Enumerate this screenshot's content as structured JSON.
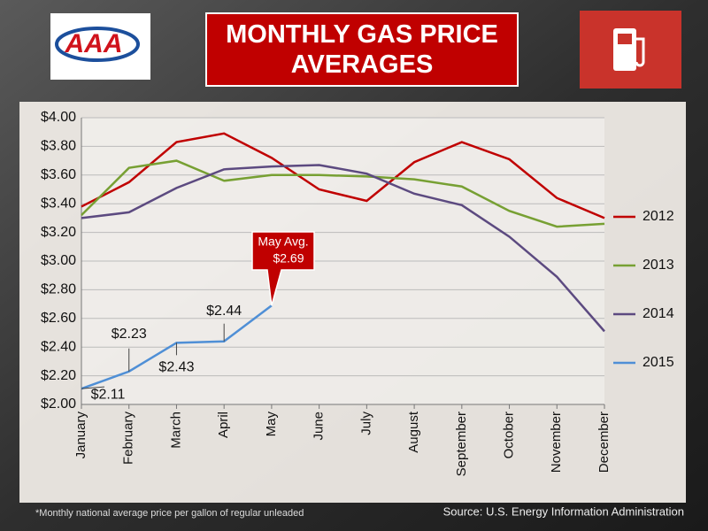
{
  "logo": "AAA",
  "chart_data": {
    "type": "line",
    "title": "MONTHLY GAS PRICE AVERAGES",
    "footnote": "*Monthly national average price per gallon of regular unleaded",
    "source": "Source: U.S. Energy Information Administration",
    "annotation": "May Avg.",
    "categories": [
      "January",
      "February",
      "March",
      "April",
      "May",
      "June",
      "July",
      "August",
      "September",
      "October",
      "November",
      "December"
    ],
    "series": [
      {
        "name": "2012",
        "color": "#c00000",
        "values": [
          3.38,
          3.55,
          3.83,
          3.89,
          3.72,
          3.5,
          3.42,
          3.69,
          3.83,
          3.71,
          3.44,
          3.3
        ]
      },
      {
        "name": "2013",
        "color": "#77a033",
        "values": [
          3.32,
          3.65,
          3.7,
          3.56,
          3.6,
          3.6,
          3.59,
          3.57,
          3.52,
          3.35,
          3.24,
          3.26
        ]
      },
      {
        "name": "2014",
        "color": "#5c4a80",
        "values": [
          3.3,
          3.34,
          3.51,
          3.64,
          3.66,
          3.67,
          3.61,
          3.47,
          3.39,
          3.17,
          2.89,
          2.51
        ]
      },
      {
        "name": "2015",
        "color": "#4f8fd6",
        "values": [
          2.11,
          2.23,
          2.43,
          2.44,
          2.69,
          null,
          null,
          null,
          null,
          null,
          null,
          null
        ],
        "value_labels": [
          "$2.11",
          "$2.23",
          "$2.43",
          "$2.44",
          "$2.69",
          null,
          null,
          null,
          null,
          null,
          null,
          null
        ]
      }
    ],
    "ylim": [
      2,
      4
    ],
    "yticks": [
      {
        "value": 2,
        "label": "$2.00"
      },
      {
        "value": 2.2,
        "label": "$2.20"
      },
      {
        "value": 2.4,
        "label": "$2.40"
      },
      {
        "value": 2.6,
        "label": "$2.60"
      },
      {
        "value": 2.8,
        "label": "$2.80"
      },
      {
        "value": 3,
        "label": "$3.00"
      },
      {
        "value": 3.2,
        "label": "$3.20"
      },
      {
        "value": 3.4,
        "label": "$3.40"
      },
      {
        "value": 3.6,
        "label": "$3.60"
      },
      {
        "value": 3.8,
        "label": "$3.80"
      },
      {
        "value": 4,
        "label": "$4.00"
      }
    ],
    "grid": true,
    "legend": "right"
  }
}
